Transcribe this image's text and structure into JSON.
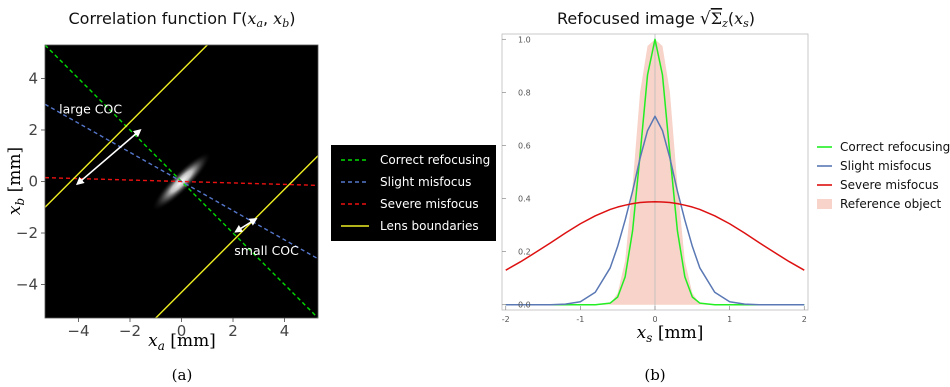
{
  "chart_data": [
    {
      "panel": "(a)",
      "type": "heatmap",
      "title": "Correlation function Γ(x_a, x_b)",
      "title_parts": {
        "text": "Correlation function Γ(",
        "var1": "x",
        "sub1": "a",
        "comma": ", ",
        "var2": "x",
        "sub2": "b",
        "close": ")"
      },
      "xlabel": {
        "var": "x",
        "sub": "a",
        "unit": " [mm]"
      },
      "ylabel": {
        "var": "x",
        "sub": "b",
        "unit": " [mm]"
      },
      "xlim": [
        -5.3,
        5.3
      ],
      "ylim": [
        -5.3,
        5.3
      ],
      "xticks": [
        -4,
        -2,
        0,
        2,
        4
      ],
      "yticks": [
        -4,
        -2,
        0,
        2,
        4
      ],
      "xtick_labels": [
        "−4",
        "−2",
        "0",
        "2",
        "4"
      ],
      "ytick_labels": [
        "−4",
        "−2",
        "0",
        "2",
        "4"
      ],
      "background": "#000000",
      "blob": {
        "center": [
          0,
          0
        ],
        "direction_slope": -1,
        "half_length_major": 1.1,
        "half_length_minor": 0.25
      },
      "series": [
        {
          "name": "Correct refocusing",
          "color": "#00dd00",
          "style": "dashed",
          "x": [
            -5.3,
            5.3
          ],
          "y": [
            5.3,
            -5.3
          ]
        },
        {
          "name": "Slight misfocus",
          "color": "#5577cc",
          "style": "dashed",
          "x": [
            -5.3,
            5.3
          ],
          "y": [
            3.0,
            -3.0
          ]
        },
        {
          "name": "Severe misfocus",
          "color": "#ee1111",
          "style": "dashed",
          "x": [
            -5.3,
            5.3
          ],
          "y": [
            0.15,
            -0.15
          ]
        },
        {
          "name": "Lens boundaries",
          "color": "#eeee22",
          "style": "solid",
          "lines": [
            {
              "x": [
                -5.3,
                2.0
              ],
              "y": [
                -1.0,
                6.3
              ]
            },
            {
              "x": [
                -2.0,
                5.3
              ],
              "y": [
                -6.3,
                1.0
              ]
            }
          ]
        }
      ],
      "annotations": [
        {
          "text": "large COC",
          "arrow_from": [
            -4.05,
            -0.1
          ],
          "arrow_to": [
            -1.6,
            2.0
          ]
        },
        {
          "text": "small COC",
          "arrow_from": [
            2.1,
            -1.95
          ],
          "arrow_to": [
            2.9,
            -1.45
          ]
        }
      ],
      "legend_position": "right"
    },
    {
      "panel": "(b)",
      "type": "line",
      "title": "Refocused image √Σz(xs)",
      "title_parts": {
        "text": "Refocused image ",
        "sym": "Σ",
        "sub": "z",
        "open": "(",
        "var": "x",
        "vsub": "s",
        "close": ")"
      },
      "xlabel": {
        "var": "x",
        "sub": "s",
        "unit": " [mm]"
      },
      "ylabel": "",
      "xlim": [
        -2.05,
        2.05
      ],
      "ylim": [
        -0.02,
        1.02
      ],
      "xticks": [
        -2,
        -1,
        0,
        1,
        2
      ],
      "yticks": [
        0.0,
        0.2,
        0.4,
        0.6,
        0.8,
        1.0
      ],
      "xtick_labels": [
        "-2",
        "-1",
        "0",
        "1",
        "2"
      ],
      "ytick_labels": [
        "0.0",
        "0.2",
        "0.4",
        "0.6",
        "0.8",
        "1.0"
      ],
      "grid": false,
      "x": [
        -2.0,
        -1.8,
        -1.6,
        -1.4,
        -1.2,
        -1.0,
        -0.8,
        -0.6,
        -0.5,
        -0.4,
        -0.3,
        -0.2,
        -0.1,
        0.0,
        0.1,
        0.2,
        0.3,
        0.4,
        0.5,
        0.6,
        0.8,
        1.0,
        1.2,
        1.4,
        1.6,
        1.8,
        2.0
      ],
      "series": [
        {
          "name": "Correct refocusing",
          "color": "#22ee22",
          "values": [
            0.0,
            0.0,
            0.0,
            0.0,
            0.0,
            0.0,
            0.0,
            0.006,
            0.029,
            0.105,
            0.279,
            0.565,
            0.866,
            1.0,
            0.866,
            0.565,
            0.279,
            0.105,
            0.029,
            0.006,
            0.0,
            0.0,
            0.0,
            0.0,
            0.0,
            0.0,
            0.0
          ]
        },
        {
          "name": "Slight misfocus",
          "color": "#5a78b4",
          "values": [
            0.0,
            0.0,
            0.0,
            0.0,
            0.002,
            0.011,
            0.047,
            0.139,
            0.22,
            0.319,
            0.428,
            0.552,
            0.656,
            0.71,
            0.656,
            0.552,
            0.428,
            0.319,
            0.22,
            0.139,
            0.047,
            0.011,
            0.002,
            0.0,
            0.0,
            0.0,
            0.0
          ]
        },
        {
          "name": "Severe misfocus",
          "color": "#dd1111",
          "values": [
            0.13,
            0.162,
            0.197,
            0.233,
            0.27,
            0.305,
            0.335,
            0.359,
            0.368,
            0.375,
            0.381,
            0.385,
            0.387,
            0.388,
            0.387,
            0.385,
            0.381,
            0.375,
            0.368,
            0.359,
            0.335,
            0.305,
            0.27,
            0.233,
            0.197,
            0.162,
            0.13
          ]
        },
        {
          "name": "Reference object",
          "color": "#f7d3c9",
          "fill": true,
          "values": [
            0.0,
            0.0,
            0.0,
            0.0,
            0.0,
            0.0,
            0.0,
            0.002,
            0.044,
            0.165,
            0.45,
            0.8,
            0.975,
            1.0,
            0.975,
            0.8,
            0.45,
            0.165,
            0.044,
            0.002,
            0.0,
            0.0,
            0.0,
            0.0,
            0.0,
            0.0,
            0.0
          ]
        }
      ],
      "legend_position": "right"
    }
  ]
}
